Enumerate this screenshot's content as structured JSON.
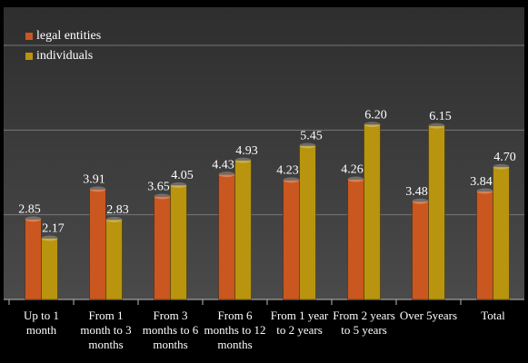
{
  "chart_data": {
    "type": "bar",
    "categories": [
      "Up to 1 month",
      "From 1 month to 3 months",
      "From 3 months to 6 months",
      "From 6 months to 12 months",
      "From 1 year to 2 years",
      "From 2 years to 5 years",
      "Over 5years",
      "Total"
    ],
    "series": [
      {
        "name": "legal entities",
        "color": "#c9571f",
        "values": [
          2.85,
          3.91,
          3.65,
          4.43,
          4.23,
          4.26,
          3.48,
          3.84
        ],
        "value_labels": [
          "2.85",
          "3.91",
          "3.65",
          "4.43",
          "4.23",
          "4.26",
          "3.48",
          "3.84"
        ]
      },
      {
        "name": "individuals",
        "color": "#b8940f",
        "values": [
          2.17,
          2.83,
          4.05,
          4.93,
          5.45,
          6.2,
          6.15,
          4.7
        ],
        "value_labels": [
          "2.17",
          "2.83",
          "4.05",
          "4.93",
          "5.45",
          "6.20",
          "6.15",
          "4.70"
        ]
      }
    ],
    "ylim": [
      0,
      9
    ],
    "yticks": [
      0,
      3,
      6,
      9
    ],
    "grid": true,
    "legend": "top-left"
  }
}
